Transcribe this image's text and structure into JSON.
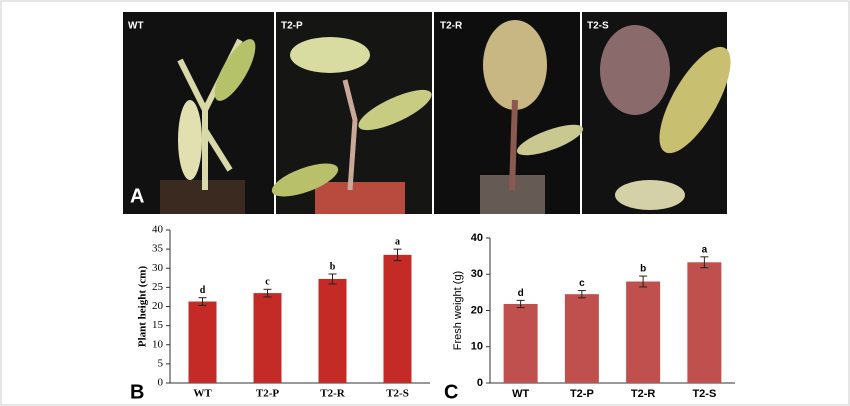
{
  "photos": {
    "labels": [
      "WT",
      "T2-P",
      "T2-R",
      "T2-S"
    ],
    "panel": "A"
  },
  "chart_data": [
    {
      "type": "bar",
      "panel": "B",
      "ylabel": "Plant height (cm)",
      "categories": [
        "WT",
        "T2-P",
        "T2-R",
        "T2-S"
      ],
      "values": [
        21.3,
        23.5,
        27.2,
        33.5
      ],
      "errors": [
        1.0,
        1.0,
        1.3,
        1.5
      ],
      "annotations": [
        "d",
        "c",
        "b",
        "a"
      ],
      "color": "#c42b27",
      "ylim": [
        0,
        40
      ],
      "yticks": [
        0,
        5,
        10,
        15,
        20,
        25,
        30,
        35,
        40
      ]
    },
    {
      "type": "bar",
      "panel": "C",
      "ylabel": "Fresh weight (g)",
      "categories": [
        "WT",
        "T2-P",
        "T2-R",
        "T2-S"
      ],
      "values": [
        21.8,
        24.5,
        28.0,
        33.3
      ],
      "errors": [
        1.0,
        1.0,
        1.5,
        1.5
      ],
      "annotations": [
        "d",
        "c",
        "b",
        "a"
      ],
      "color": "#c0504d",
      "ylim": [
        0,
        40
      ],
      "yticks": [
        0,
        10,
        20,
        30,
        40
      ]
    }
  ]
}
